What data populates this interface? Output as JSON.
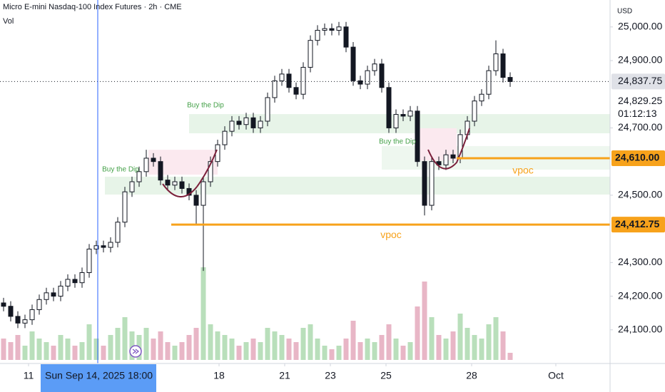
{
  "chart_data": {
    "type": "candlestick",
    "title": "Micro E-mini Nasdaq-100 Index Futures · 2h · CME",
    "volume_title": "Vol",
    "currency": "USD",
    "up_color": "#ffffff",
    "down_color": "#131722",
    "volume_up_color": "#b9dfbb",
    "volume_down_color": "#e8b6c6",
    "xlim": [
      -0.5,
      85
    ],
    "ylim": [
      24000,
      25080
    ],
    "volume_ylim": [
      0,
      300
    ],
    "open": [
      24180,
      24170,
      24140,
      24120,
      24130,
      24160,
      24190,
      24210,
      24200,
      24230,
      24250,
      24240,
      24270,
      24340,
      24350,
      24345,
      24360,
      24420,
      24510,
      24540,
      24570,
      24610,
      24600,
      24545,
      24530,
      24540,
      24520,
      24500,
      24470,
      24540,
      24600,
      24650,
      24690,
      24720,
      24710,
      24730,
      24700,
      24720,
      24790,
      24840,
      24860,
      24820,
      24800,
      24880,
      24960,
      24990,
      24995,
      24990,
      25000,
      24940,
      24840,
      24830,
      24870,
      24890,
      24820,
      24700,
      24740,
      24735,
      24750,
      24600,
      24470,
      24600,
      24590,
      24620,
      24610,
      24680,
      24720,
      24780,
      24800,
      24870,
      24920,
      24850
    ],
    "high": [
      24195,
      24185,
      24155,
      24145,
      24175,
      24205,
      24225,
      24225,
      24245,
      24265,
      24265,
      24285,
      24355,
      24365,
      24365,
      24375,
      24435,
      24525,
      24555,
      24585,
      24635,
      24625,
      24615,
      24560,
      24555,
      24555,
      24535,
      24515,
      24555,
      24615,
      24665,
      24705,
      24735,
      24735,
      24745,
      24745,
      24735,
      24805,
      24855,
      24875,
      24875,
      24835,
      24895,
      24975,
      25005,
      25010,
      25010,
      25015,
      25015,
      24955,
      24855,
      24885,
      24905,
      24905,
      24835,
      24755,
      24755,
      24765,
      24765,
      24615,
      24615,
      24615,
      24635,
      24635,
      24695,
      24735,
      24795,
      24815,
      24885,
      24960,
      24935,
      24865
    ],
    "low": [
      24155,
      24125,
      24105,
      24105,
      24115,
      24145,
      24175,
      24185,
      24185,
      24215,
      24225,
      24225,
      24255,
      24325,
      24330,
      24330,
      24345,
      24405,
      24495,
      24525,
      24555,
      24585,
      24530,
      24515,
      24515,
      24505,
      24485,
      24412.75,
      24275,
      24525,
      24585,
      24635,
      24675,
      24695,
      24695,
      24685,
      24685,
      24705,
      24775,
      24825,
      24805,
      24785,
      24785,
      24865,
      24945,
      24975,
      24975,
      24975,
      24925,
      24825,
      24815,
      24815,
      24855,
      24805,
      24685,
      24685,
      24720,
      24720,
      24585,
      24440,
      24455,
      24575,
      24575,
      24595,
      24595,
      24665,
      24705,
      24765,
      24785,
      24855,
      24835,
      24822
    ],
    "close": [
      24170,
      24140,
      24120,
      24130,
      24160,
      24190,
      24210,
      24200,
      24230,
      24250,
      24240,
      24270,
      24340,
      24350,
      24345,
      24360,
      24420,
      24510,
      24540,
      24570,
      24610,
      24600,
      24545,
      24530,
      24540,
      24520,
      24500,
      24470,
      24540,
      24600,
      24650,
      24690,
      24720,
      24710,
      24730,
      24700,
      24720,
      24790,
      24840,
      24860,
      24820,
      24800,
      24880,
      24960,
      24990,
      24995,
      24990,
      25000,
      24940,
      24840,
      24830,
      24870,
      24890,
      24820,
      24700,
      24740,
      24735,
      24750,
      24600,
      24470,
      24600,
      24590,
      24620,
      24610,
      24680,
      24720,
      24780,
      24800,
      24870,
      24920,
      24850,
      24837.75
    ],
    "volume": [
      60,
      50,
      70,
      40,
      80,
      60,
      50,
      40,
      70,
      60,
      40,
      50,
      100,
      60,
      40,
      70,
      90,
      120,
      80,
      70,
      90,
      60,
      80,
      50,
      40,
      50,
      70,
      90,
      260,
      100,
      80,
      70,
      60,
      40,
      50,
      60,
      50,
      90,
      80,
      70,
      60,
      50,
      90,
      100,
      60,
      40,
      30,
      40,
      60,
      110,
      50,
      60,
      50,
      70,
      100,
      60,
      40,
      50,
      150,
      220,
      120,
      70,
      60,
      80,
      130,
      90,
      70,
      60,
      100,
      120,
      80,
      20
    ],
    "xticks": [
      {
        "value": 3.5,
        "label": "11"
      },
      {
        "value": 30.2,
        "label": "18"
      },
      {
        "value": 39.4,
        "label": "21"
      },
      {
        "value": 45.8,
        "label": "23"
      },
      {
        "value": 53.6,
        "label": "25"
      },
      {
        "value": 65.6,
        "label": "28"
      },
      {
        "value": 77.4,
        "label": "Oct"
      }
    ],
    "yticks": [
      {
        "value": 24100,
        "label": "24,100.00"
      },
      {
        "value": 24200,
        "label": "24,200.00"
      },
      {
        "value": 24300,
        "label": "24,300.00"
      },
      {
        "value": 24500,
        "label": "24,500.00"
      },
      {
        "value": 24700,
        "label": "24,700.00"
      },
      {
        "value": 24900,
        "label": "24,900.00"
      },
      {
        "value": 25000,
        "label": "25,000.00"
      }
    ],
    "crosshair": {
      "x": 13.2,
      "date": "Sun Sep 14, 2025",
      "time": "18:00"
    },
    "last_price": {
      "value": 24837.75,
      "label": "24,837.75",
      "second_label": "24,829.25",
      "countdown": "01:12:13"
    },
    "zones": [
      {
        "from": 14.2,
        "top": 24555,
        "bottom": 24502,
        "color": "#e7f4e8"
      },
      {
        "from": 26,
        "top": 24741,
        "bottom": 24684,
        "color": "#e7f4e8"
      },
      {
        "from": 53,
        "top": 24646,
        "bottom": 24576,
        "color": "#eef7ef"
      },
      {
        "from": 20.3,
        "to": 30,
        "top": 24635,
        "bottom": 24561,
        "color": "#fbe9ef"
      },
      {
        "from": 58,
        "to": 63.5,
        "top": 24699,
        "bottom": 24603,
        "color": "#fbe9ef"
      }
    ],
    "levels": [
      {
        "value": 24412.75,
        "label": "24,412.75",
        "from": 23.5,
        "color": "#f7a21b"
      },
      {
        "value": 24610,
        "label": "24,610.00",
        "from": 63.5,
        "color": "#f7a21b"
      }
    ],
    "annotations": [
      {
        "text": "Buy the Dip",
        "x": 16.4,
        "price": 24576,
        "color": "#43a047"
      },
      {
        "text": "Buy the Dip",
        "x": 28.3,
        "price": 24767,
        "color": "#43a047"
      },
      {
        "text": "Buy the Dip",
        "x": 55.2,
        "price": 24659,
        "color": "#43a047"
      },
      {
        "text": "vpoc",
        "x": 54.3,
        "price": 24381,
        "color": "#f7a21b"
      },
      {
        "text": "vpoc",
        "x": 72.8,
        "price": 24572,
        "color": "#f7a21b"
      }
    ]
  }
}
